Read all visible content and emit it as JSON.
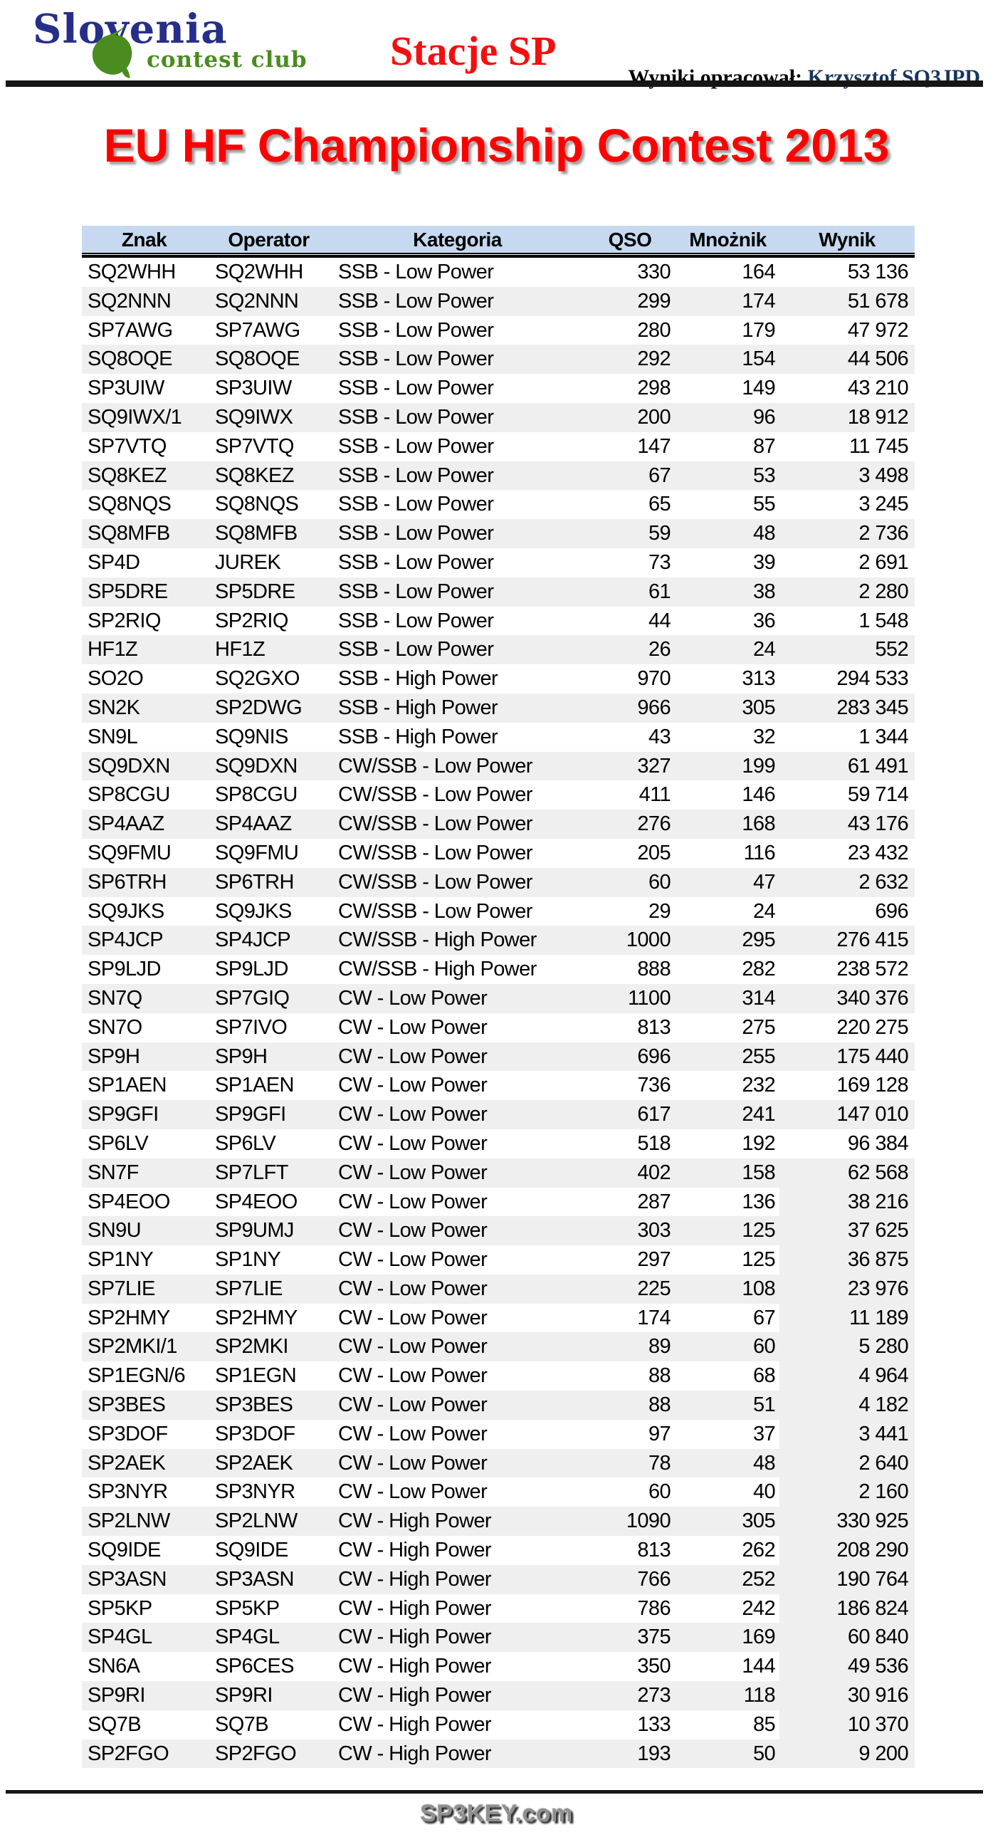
{
  "header": {
    "logo": {
      "line1": "Slovenia",
      "line2": "contest club"
    },
    "page_heading": "Stacje SP",
    "credit_label": "Wyniki opracował:",
    "credit_name": "Krzysztof SQ3JPD"
  },
  "title": "EU HF Championship Contest 2013",
  "table": {
    "columns": [
      "Znak",
      "Operator",
      "Kategoria",
      "QSO",
      "Mnożnik",
      "Wynik"
    ],
    "wynik_shaded_from": 33,
    "rows": [
      [
        "SQ2WHH",
        "SQ2WHH",
        "SSB - Low Power",
        "330",
        "164",
        "53 136"
      ],
      [
        "SQ2NNN",
        "SQ2NNN",
        "SSB - Low Power",
        "299",
        "174",
        "51 678"
      ],
      [
        "SP7AWG",
        "SP7AWG",
        "SSB - Low Power",
        "280",
        "179",
        "47 972"
      ],
      [
        "SQ8OQE",
        "SQ8OQE",
        "SSB - Low Power",
        "292",
        "154",
        "44 506"
      ],
      [
        "SP3UIW",
        "SP3UIW",
        "SSB - Low Power",
        "298",
        "149",
        "43 210"
      ],
      [
        "SQ9IWX/1",
        "SQ9IWX",
        "SSB - Low Power",
        "200",
        "96",
        "18 912"
      ],
      [
        "SP7VTQ",
        "SP7VTQ",
        "SSB - Low Power",
        "147",
        "87",
        "11 745"
      ],
      [
        "SQ8KEZ",
        "SQ8KEZ",
        "SSB - Low Power",
        "67",
        "53",
        "3 498"
      ],
      [
        "SQ8NQS",
        "SQ8NQS",
        "SSB - Low Power",
        "65",
        "55",
        "3 245"
      ],
      [
        "SQ8MFB",
        "SQ8MFB",
        "SSB - Low Power",
        "59",
        "48",
        "2 736"
      ],
      [
        "SP4D",
        "JUREK",
        "SSB - Low Power",
        "73",
        "39",
        "2 691"
      ],
      [
        "SP5DRE",
        "SP5DRE",
        "SSB - Low Power",
        "61",
        "38",
        "2 280"
      ],
      [
        "SP2RIQ",
        "SP2RIQ",
        "SSB - Low Power",
        "44",
        "36",
        "1 548"
      ],
      [
        "HF1Z",
        "HF1Z",
        "SSB - Low Power",
        "26",
        "24",
        "552"
      ],
      [
        "SO2O",
        "SQ2GXO",
        "SSB - High Power",
        "970",
        "313",
        "294 533"
      ],
      [
        "SN2K",
        "SP2DWG",
        "SSB - High Power",
        "966",
        "305",
        "283 345"
      ],
      [
        "SN9L",
        "SQ9NIS",
        "SSB - High Power",
        "43",
        "32",
        "1 344"
      ],
      [
        "SQ9DXN",
        "SQ9DXN",
        "CW/SSB - Low Power",
        "327",
        "199",
        "61 491"
      ],
      [
        "SP8CGU",
        "SP8CGU",
        "CW/SSB - Low Power",
        "411",
        "146",
        "59 714"
      ],
      [
        "SP4AAZ",
        "SP4AAZ",
        "CW/SSB - Low Power",
        "276",
        "168",
        "43 176"
      ],
      [
        "SQ9FMU",
        "SQ9FMU",
        "CW/SSB - Low Power",
        "205",
        "116",
        "23 432"
      ],
      [
        "SP6TRH",
        "SP6TRH",
        "CW/SSB - Low Power",
        "60",
        "47",
        "2 632"
      ],
      [
        "SQ9JKS",
        "SQ9JKS",
        "CW/SSB - Low Power",
        "29",
        "24",
        "696"
      ],
      [
        "SP4JCP",
        "SP4JCP",
        "CW/SSB - High Power",
        "1000",
        "295",
        "276 415"
      ],
      [
        "SP9LJD",
        "SP9LJD",
        "CW/SSB - High Power",
        "888",
        "282",
        "238 572"
      ],
      [
        "SN7Q",
        "SP7GIQ",
        "CW - Low Power",
        "1100",
        "314",
        "340 376"
      ],
      [
        "SN7O",
        "SP7IVO",
        "CW - Low Power",
        "813",
        "275",
        "220 275"
      ],
      [
        "SP9H",
        "SP9H",
        "CW - Low Power",
        "696",
        "255",
        "175 440"
      ],
      [
        "SP1AEN",
        "SP1AEN",
        "CW - Low Power",
        "736",
        "232",
        "169 128"
      ],
      [
        "SP9GFI",
        "SP9GFI",
        "CW - Low Power",
        "617",
        "241",
        "147 010"
      ],
      [
        "SP6LV",
        "SP6LV",
        "CW - Low Power",
        "518",
        "192",
        "96 384"
      ],
      [
        "SN7F",
        "SP7LFT",
        "CW - Low Power",
        "402",
        "158",
        "62 568"
      ],
      [
        "SP4EOO",
        "SP4EOO",
        "CW - Low Power",
        "287",
        "136",
        "38 216"
      ],
      [
        "SN9U",
        "SP9UMJ",
        "CW - Low Power",
        "303",
        "125",
        "37 625"
      ],
      [
        "SP1NY",
        "SP1NY",
        "CW - Low Power",
        "297",
        "125",
        "36 875"
      ],
      [
        "SP7LIE",
        "SP7LIE",
        "CW - Low Power",
        "225",
        "108",
        "23 976"
      ],
      [
        "SP2HMY",
        "SP2HMY",
        "CW - Low Power",
        "174",
        "67",
        "11 189"
      ],
      [
        "SP2MKI/1",
        "SP2MKI",
        "CW - Low Power",
        "89",
        "60",
        "5 280"
      ],
      [
        "SP1EGN/6",
        "SP1EGN",
        "CW - Low Power",
        "88",
        "68",
        "4 964"
      ],
      [
        "SP3BES",
        "SP3BES",
        "CW - Low Power",
        "88",
        "51",
        "4 182"
      ],
      [
        "SP3DOF",
        "SP3DOF",
        "CW - Low Power",
        "97",
        "37",
        "3 441"
      ],
      [
        "SP2AEK",
        "SP2AEK",
        "CW - Low Power",
        "78",
        "48",
        "2 640"
      ],
      [
        "SP3NYR",
        "SP3NYR",
        "CW - Low Power",
        "60",
        "40",
        "2 160"
      ],
      [
        "SP2LNW",
        "SP2LNW",
        "CW - High Power",
        "1090",
        "305",
        "330 925"
      ],
      [
        "SQ9IDE",
        "SQ9IDE",
        "CW - High Power",
        "813",
        "262",
        "208 290"
      ],
      [
        "SP3ASN",
        "SP3ASN",
        "CW - High Power",
        "766",
        "252",
        "190 764"
      ],
      [
        "SP5KP",
        "SP5KP",
        "CW - High Power",
        "786",
        "242",
        "186 824"
      ],
      [
        "SP4GL",
        "SP4GL",
        "CW - High Power",
        "375",
        "169",
        "60 840"
      ],
      [
        "SN6A",
        "SP6CES",
        "CW - High Power",
        "350",
        "144",
        "49 536"
      ],
      [
        "SP9RI",
        "SP9RI",
        "CW - High Power",
        "273",
        "118",
        "30 916"
      ],
      [
        "SQ7B",
        "SQ7B",
        "CW - High Power",
        "133",
        "85",
        "10 370"
      ],
      [
        "SP2FGO",
        "SP2FGO",
        "CW - High Power",
        "193",
        "50",
        "9 200"
      ]
    ]
  },
  "footer": {
    "site": "SP3KEY.com"
  },
  "colors": {
    "accent_red": "#fe0000",
    "logo_navy": "#252f8a",
    "logo_green": "#4a8c1f",
    "credit_navy": "#17365d",
    "table_header_fill": "#c6d9f0",
    "row_stripe": "#efefef"
  }
}
